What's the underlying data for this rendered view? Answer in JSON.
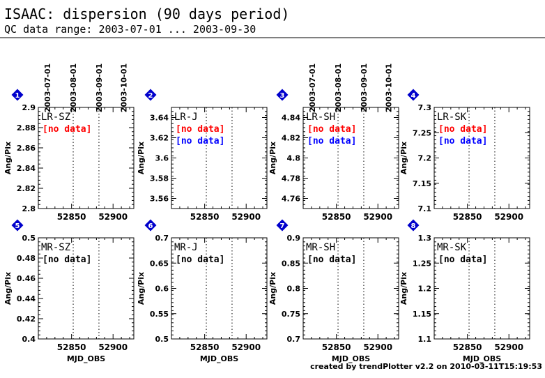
{
  "header": {
    "title": "ISAAC: dispersion (90 days period)",
    "subtitle": "QC data range: 2003-07-01 ... 2003-09-30"
  },
  "footer": {
    "credit": "created by trendPlotter v2.2 on 2010-03-11T15:19:53"
  },
  "chart_data": [
    {
      "type": "scatter",
      "panel": "1",
      "label": "LR-SZ",
      "ylabel": "Ang/Pix",
      "xlabel": "",
      "xlim": [
        52810,
        52925
      ],
      "ylim": [
        2.8,
        2.9
      ],
      "yticks": [
        2.8,
        2.82,
        2.84,
        2.86,
        2.88,
        2.9
      ],
      "xticks": [
        52850,
        52900
      ],
      "date_ticks": [
        "2003-07-01",
        "2003-08-01",
        "2003-09-01",
        "2003-10-01"
      ],
      "date_mjd": [
        52821,
        52852,
        52883,
        52913
      ],
      "guides_mjd": [
        52852,
        52883
      ],
      "notes": [
        {
          "text": "[no data]",
          "color": "#ff0000"
        }
      ],
      "series": []
    },
    {
      "type": "scatter",
      "panel": "2",
      "label": "LR-J",
      "ylabel": "Ang/Pix",
      "xlabel": "",
      "xlim": [
        52810,
        52925
      ],
      "ylim": [
        3.55,
        3.65
      ],
      "yticks": [
        3.56,
        3.58,
        3.6,
        3.62,
        3.64
      ],
      "xticks": [
        52850,
        52900
      ],
      "guides_mjd": [
        52852,
        52883
      ],
      "notes": [
        {
          "text": "[no data]",
          "color": "#ff0000"
        },
        {
          "text": "[no data]",
          "color": "#0000ff"
        }
      ],
      "series": []
    },
    {
      "type": "scatter",
      "panel": "3",
      "label": "LR-SH",
      "ylabel": "Ang/Pix",
      "xlabel": "",
      "xlim": [
        52810,
        52925
      ],
      "ylim": [
        4.75,
        4.85
      ],
      "yticks": [
        4.76,
        4.78,
        4.8,
        4.82,
        4.84
      ],
      "xticks": [
        52850,
        52900
      ],
      "date_ticks": [
        "2003-07-01",
        "2003-08-01",
        "2003-09-01",
        "2003-10-01"
      ],
      "date_mjd": [
        52821,
        52852,
        52883,
        52913
      ],
      "guides_mjd": [
        52852,
        52883
      ],
      "notes": [
        {
          "text": "[no data]",
          "color": "#ff0000"
        },
        {
          "text": "[no data]",
          "color": "#0000ff"
        }
      ],
      "series": []
    },
    {
      "type": "scatter",
      "panel": "4",
      "label": "LR-SK",
      "ylabel": "Ang/Pix",
      "xlabel": "",
      "xlim": [
        52810,
        52925
      ],
      "ylim": [
        7.1,
        7.3
      ],
      "yticks": [
        7.1,
        7.15,
        7.2,
        7.25,
        7.3
      ],
      "xticks": [
        52850,
        52900
      ],
      "guides_mjd": [
        52852,
        52883
      ],
      "notes": [
        {
          "text": "[no data]",
          "color": "#ff0000"
        },
        {
          "text": "[no data]",
          "color": "#0000ff"
        }
      ],
      "series": []
    },
    {
      "type": "scatter",
      "panel": "5",
      "label": "MR-SZ",
      "ylabel": "Ang/Pix",
      "xlabel": "MJD_OBS",
      "xlim": [
        52810,
        52925
      ],
      "ylim": [
        0.4,
        0.5
      ],
      "yticks": [
        0.4,
        0.42,
        0.44,
        0.46,
        0.48,
        0.5
      ],
      "xticks": [
        52850,
        52900
      ],
      "guides_mjd": [
        52852,
        52883
      ],
      "notes": [
        {
          "text": "[no data]",
          "color": "#000000"
        }
      ],
      "series": []
    },
    {
      "type": "scatter",
      "panel": "6",
      "label": "MR-J",
      "ylabel": "Ang/Pix",
      "xlabel": "MJD_OBS",
      "xlim": [
        52810,
        52925
      ],
      "ylim": [
        0.5,
        0.7
      ],
      "yticks": [
        0.5,
        0.55,
        0.6,
        0.65,
        0.7
      ],
      "xticks": [
        52850,
        52900
      ],
      "guides_mjd": [
        52852,
        52883
      ],
      "notes": [
        {
          "text": "[no data]",
          "color": "#000000"
        }
      ],
      "series": []
    },
    {
      "type": "scatter",
      "panel": "7",
      "label": "MR-SH",
      "ylabel": "Ang/Pix",
      "xlabel": "MJD_OBS",
      "xlim": [
        52810,
        52925
      ],
      "ylim": [
        0.7,
        0.9
      ],
      "yticks": [
        0.7,
        0.75,
        0.8,
        0.85,
        0.9
      ],
      "xticks": [
        52850,
        52900
      ],
      "guides_mjd": [
        52852,
        52883
      ],
      "notes": [
        {
          "text": "[no data]",
          "color": "#000000"
        }
      ],
      "series": []
    },
    {
      "type": "scatter",
      "panel": "8",
      "label": "MR-SK",
      "ylabel": "Ang/Pix",
      "xlabel": "MJD_OBS",
      "xlim": [
        52810,
        52925
      ],
      "ylim": [
        1.1,
        1.3
      ],
      "yticks": [
        1.1,
        1.15,
        1.2,
        1.25,
        1.3
      ],
      "xticks": [
        52850,
        52900
      ],
      "guides_mjd": [
        52852,
        52883
      ],
      "notes": [
        {
          "text": "[no data]",
          "color": "#000000"
        }
      ],
      "series": []
    }
  ],
  "colors": {
    "frame": "#000000",
    "marker": "#0000cc",
    "missing_primary": "#ff0000",
    "missing_secondary": "#0000ff"
  }
}
